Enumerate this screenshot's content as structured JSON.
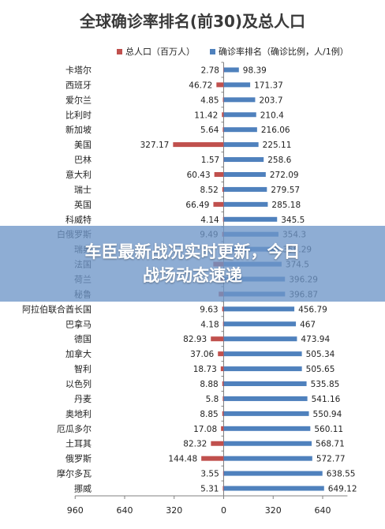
{
  "chart_data": {
    "type": "bar",
    "title": "全球确诊率排名(前30)及总人口",
    "legend": {
      "position": "top",
      "items": [
        {
          "name": "总人口（百万人）",
          "color": "#c0504d"
        },
        {
          "name": "确诊率排名（确诊比例，人/1例）",
          "color": "#4f81bd"
        }
      ]
    },
    "categories": [
      "卡塔尔",
      "西班牙",
      "爱尔兰",
      "比利时",
      "新加坡",
      "美国",
      "巴林",
      "意大利",
      "瑞士",
      "英国",
      "科威特",
      "白俄罗斯",
      "瑞典",
      "法国",
      "荷兰",
      "秘鲁",
      "阿拉伯联合酋长国",
      "巴拿马",
      "德国",
      "加拿大",
      "智利",
      "以色列",
      "丹麦",
      "奥地利",
      "厄瓜多尔",
      "土耳其",
      "俄罗斯",
      "摩尔多瓦",
      "挪威"
    ],
    "series": [
      {
        "name": "总人口（百万人）",
        "color": "#c0504d",
        "values": [
          2.78,
          46.72,
          4.85,
          11.42,
          5.64,
          327.17,
          1.57,
          60.43,
          8.52,
          66.49,
          4.14,
          9.49,
          10.2,
          67.0,
          17.3,
          31.99,
          9.63,
          4.18,
          82.93,
          37.06,
          18.73,
          8.88,
          5.8,
          8.85,
          17.08,
          82.32,
          144.48,
          3.55,
          5.31
        ],
        "labels": [
          "2.78",
          "46.72",
          "4.85",
          "11.42",
          "5.64",
          "327.17",
          "1.57",
          "60.43",
          "8.52",
          "66.49",
          "4.14",
          "9.49",
          "",
          "",
          "",
          "",
          "9.63",
          "4.18",
          "82.93",
          "37.06",
          "18.73",
          "8.88",
          "5.8",
          "8.85",
          "17.08",
          "82.32",
          "144.48",
          "3.55",
          "5.31"
        ]
      },
      {
        "name": "确诊率排名（确诊比例，人/1例）",
        "color": "#4f81bd",
        "values": [
          98.39,
          171.37,
          203.7,
          210.4,
          216.06,
          225.11,
          258.6,
          272.09,
          279.57,
          285.18,
          345.5,
          354.3,
          356.29,
          374.5,
          396.29,
          396.87,
          456.79,
          467,
          473.94,
          505.34,
          505.65,
          535.85,
          541.16,
          550.94,
          560.11,
          568.71,
          572.77,
          638.55,
          649.12
        ],
        "labels": [
          "98.39",
          "171.37",
          "203.7",
          "210.4",
          "216.06",
          "225.11",
          "258.6",
          "272.09",
          "279.57",
          "285.18",
          "345.5",
          "354.3",
          "356.29",
          "374.5",
          "396.29",
          "396.87",
          "456.79",
          "467",
          "473.94",
          "505.34",
          "505.65",
          "535.85",
          "541.16",
          "550.94",
          "560.11",
          "568.71",
          "572.77",
          "638.55",
          "649.12"
        ]
      }
    ],
    "xaxis": {
      "range": [
        -960,
        800
      ],
      "tick_values": [
        -960,
        -640,
        -320,
        0,
        320,
        640
      ],
      "tick_labels": [
        "960",
        "640",
        "320",
        "0",
        "320",
        "640"
      ]
    },
    "grid": false
  },
  "overlay": {
    "line1": "车臣最新战况实时更新，今日",
    "line2": "战场动态速递"
  }
}
